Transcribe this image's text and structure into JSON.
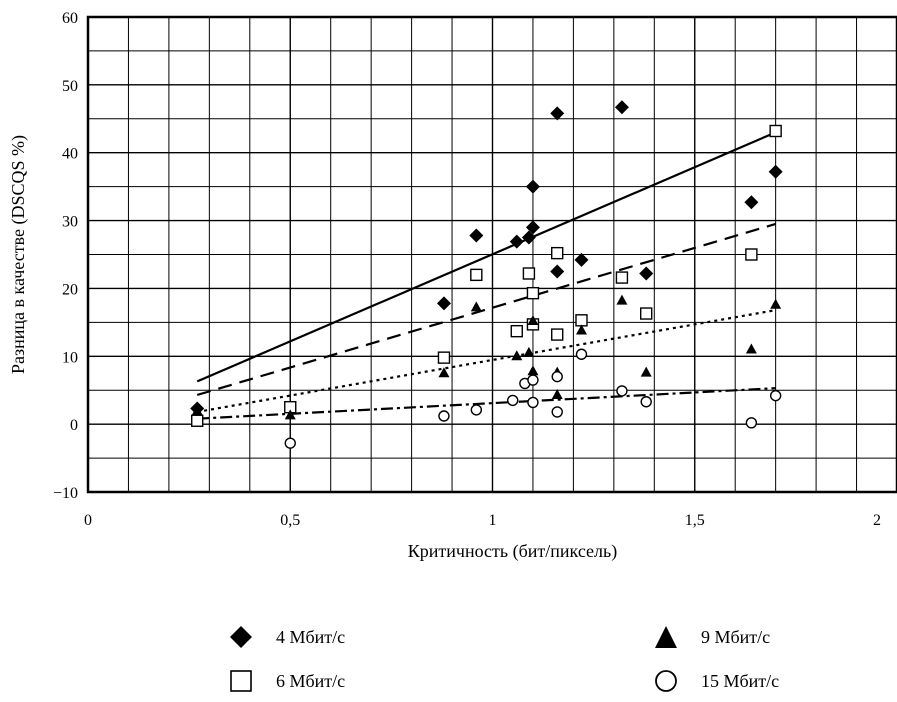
{
  "chart_data": {
    "type": "scatter",
    "xlabel": "Критичность (бит/пиксель)",
    "ylabel": "Разница в качестве (DSCQS %)",
    "xlim": [
      0,
      2
    ],
    "ylim": [
      -10,
      60
    ],
    "xticks": [
      0,
      0.5,
      1,
      1.5,
      2
    ],
    "xtick_labels": [
      "0",
      "0,5",
      "1",
      "1,5",
      "2"
    ],
    "yticks": [
      -10,
      0,
      10,
      20,
      30,
      40,
      50,
      60
    ],
    "ytick_labels": [
      "−10",
      "0",
      "10",
      "20",
      "30",
      "40",
      "50",
      "60"
    ],
    "grid": true,
    "legend_position": "bottom",
    "series": [
      {
        "name": "4 Мбит/с",
        "marker": "diamond-filled",
        "line_style": "solid",
        "trend": [
          [
            0.27,
            6.3
          ],
          [
            1.7,
            43
          ]
        ],
        "points": [
          [
            0.27,
            2.3
          ],
          [
            0.88,
            17.8
          ],
          [
            0.96,
            27.8
          ],
          [
            1.06,
            26.9
          ],
          [
            1.09,
            27.5
          ],
          [
            1.1,
            29
          ],
          [
            1.1,
            35
          ],
          [
            1.16,
            45.8
          ],
          [
            1.16,
            22.5
          ],
          [
            1.22,
            24.2
          ],
          [
            1.32,
            46.7
          ],
          [
            1.38,
            22.2
          ],
          [
            1.64,
            32.7
          ],
          [
            1.7,
            37.2
          ]
        ]
      },
      {
        "name": "6 Мбит/с",
        "marker": "square-open",
        "line_style": "dashed",
        "trend": [
          [
            0.27,
            4.3
          ],
          [
            1.7,
            29.5
          ]
        ],
        "points": [
          [
            0.27,
            0.5
          ],
          [
            0.5,
            2.5
          ],
          [
            0.88,
            9.8
          ],
          [
            0.96,
            22
          ],
          [
            1.06,
            13.7
          ],
          [
            1.09,
            22.2
          ],
          [
            1.1,
            19.3
          ],
          [
            1.1,
            14.7
          ],
          [
            1.16,
            25.2
          ],
          [
            1.16,
            13.2
          ],
          [
            1.22,
            15.3
          ],
          [
            1.32,
            21.6
          ],
          [
            1.38,
            16.3
          ],
          [
            1.64,
            25
          ],
          [
            1.7,
            43.2
          ]
        ]
      },
      {
        "name": "9 Мбит/с",
        "marker": "triangle-filled",
        "line_style": "dotted",
        "trend": [
          [
            0.27,
            1.8
          ],
          [
            1.7,
            16.8
          ]
        ],
        "points": [
          [
            0.27,
            1.9
          ],
          [
            0.5,
            1.3
          ],
          [
            0.88,
            7.5
          ],
          [
            0.96,
            17.2
          ],
          [
            1.06,
            10
          ],
          [
            1.09,
            10.5
          ],
          [
            1.1,
            15.2
          ],
          [
            1.1,
            7.8
          ],
          [
            1.16,
            4.3
          ],
          [
            1.16,
            7.6
          ],
          [
            1.22,
            13.8
          ],
          [
            1.32,
            18.2
          ],
          [
            1.38,
            7.6
          ],
          [
            1.64,
            11
          ],
          [
            1.7,
            17.6
          ]
        ]
      },
      {
        "name": "15 Мбит/с",
        "marker": "circle-open",
        "line_style": "dash-dot",
        "trend": [
          [
            0.27,
            0.8
          ],
          [
            1.7,
            5.3
          ]
        ],
        "points": [
          [
            0.5,
            -2.8
          ],
          [
            0.88,
            1.2
          ],
          [
            0.96,
            2.1
          ],
          [
            1.05,
            3.5
          ],
          [
            1.08,
            6
          ],
          [
            1.1,
            6.5
          ],
          [
            1.1,
            3.2
          ],
          [
            1.16,
            7
          ],
          [
            1.16,
            1.8
          ],
          [
            1.22,
            10.3
          ],
          [
            1.32,
            4.9
          ],
          [
            1.38,
            3.3
          ],
          [
            1.64,
            0.2
          ],
          [
            1.7,
            4.2
          ]
        ]
      }
    ]
  }
}
